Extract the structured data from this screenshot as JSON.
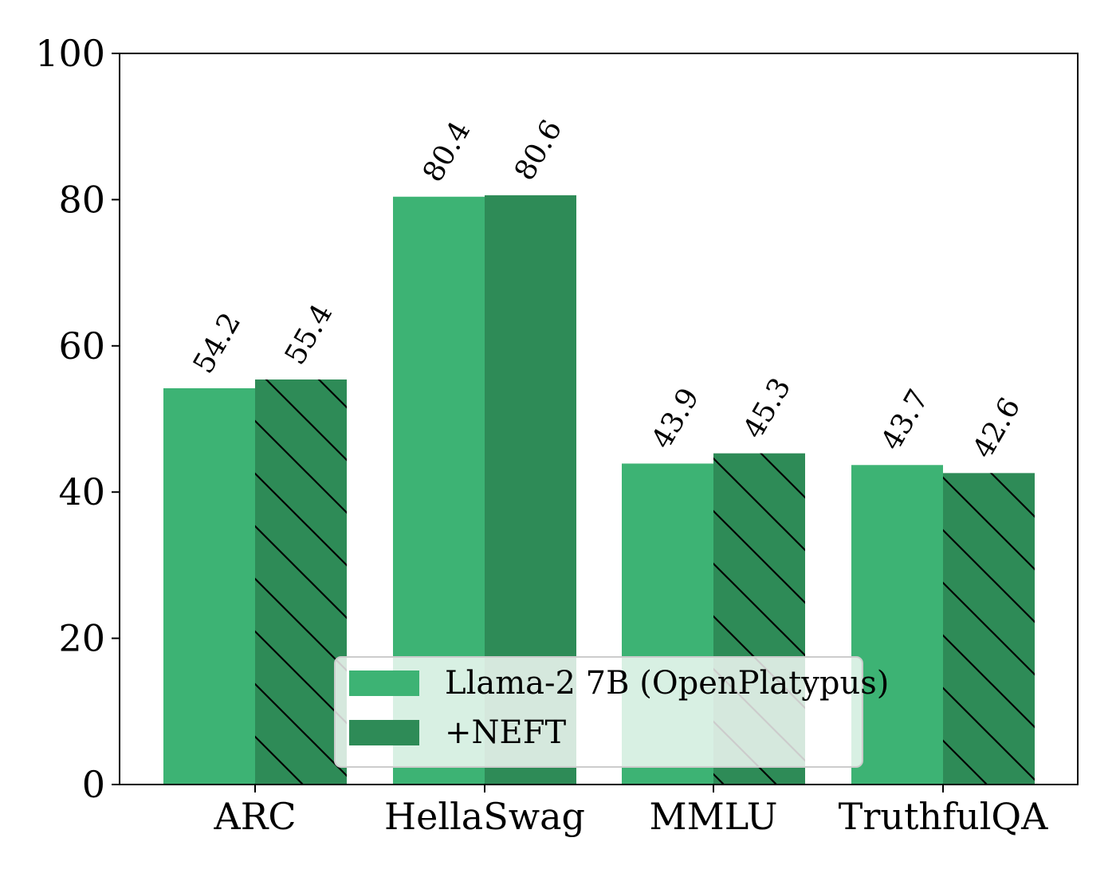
{
  "chart_data": {
    "type": "bar",
    "categories": [
      "ARC",
      "HellaSwag",
      "MMLU",
      "TruthfulQA"
    ],
    "series": [
      {
        "name": "Llama-2 7B (OpenPlatypus)",
        "values": [
          54.2,
          80.4,
          43.9,
          43.7
        ],
        "color": "#3db374",
        "hatched": [
          false,
          false,
          false,
          false
        ]
      },
      {
        "name": "+NEFT",
        "values": [
          55.4,
          80.6,
          45.3,
          42.6
        ],
        "color": "#2e8b57",
        "hatched": [
          true,
          false,
          true,
          true
        ]
      }
    ],
    "value_labels": [
      [
        "54.2",
        "80.4",
        "43.9",
        "43.7"
      ],
      [
        "55.4",
        "80.6",
        "45.3",
        "42.6"
      ]
    ],
    "yticks": [
      "0",
      "20",
      "40",
      "60",
      "80",
      "100"
    ],
    "ylim": [
      0,
      100
    ],
    "legend_position": "lower-center",
    "grid": false
  }
}
